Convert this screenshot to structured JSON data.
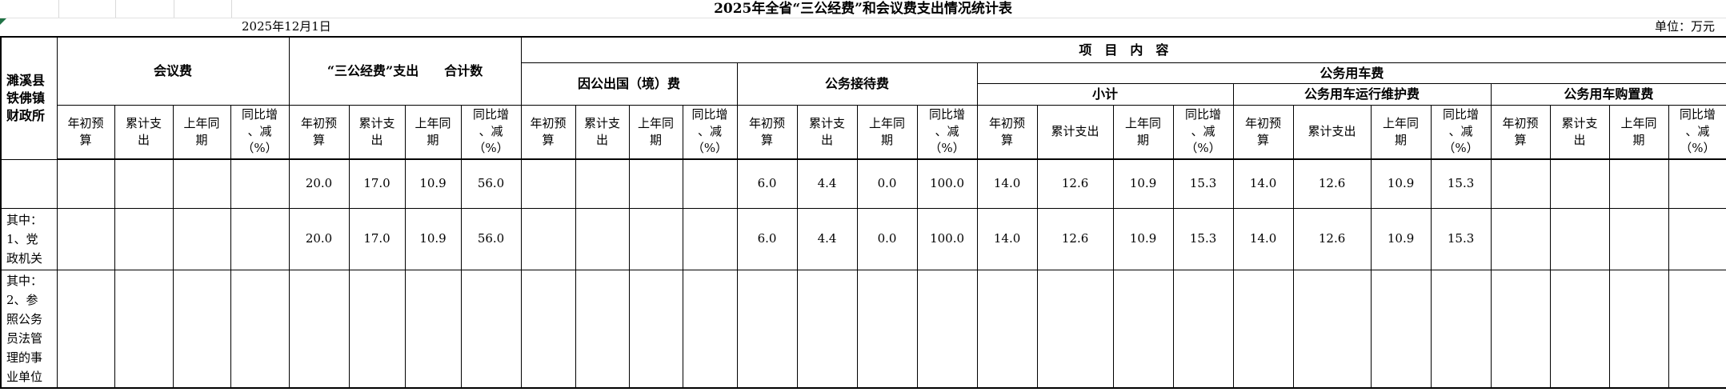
{
  "title": "2025年全省“三公经费”和会议费支出情况统计表",
  "date": "2025年12月1日",
  "unit_note": "单位：万元",
  "colors": {
    "error_triangle_green": "#217346",
    "grid_gray": "#d9d9d9",
    "border_black": "#000000"
  },
  "table": {
    "org": "濉溪县\n铁佛镇\n财政所",
    "groups": {
      "meeting": "会议费",
      "sangong_total": "“三公经费”支出　　合计数",
      "project_content": "项　目　内　容",
      "abroad": "因公出国（境）费",
      "reception": "公务接待费",
      "vehicle": "公务用车费",
      "vehicle_subtotal": "小计",
      "vehicle_maintenance": "公务用车运行维护费",
      "vehicle_purchase": "公务用车购置费"
    },
    "columns": [
      "年初预\n算",
      "累计支\n出",
      "上年同\n期",
      "同比增\n、减\n（%）",
      "年初预\n算",
      "累计支\n出",
      "上年同\n期",
      "同比增\n、减\n（%）",
      "年初预\n算",
      "累计支\n出",
      "上年同\n期",
      "同比增\n、减\n（%）",
      "年初预\n算",
      "累计支\n出",
      "上年同\n期",
      "同比增\n、减\n（%）",
      "年初预\n算",
      "累计支出",
      "上年同\n期",
      "同比增\n、减\n（%）",
      "年初预\n算",
      "累计支出",
      "上年同\n期",
      "同比增\n、减\n（%）",
      "年初预\n算",
      "累计支\n出",
      "上年同\n期",
      "同比增\n、减\n（%）"
    ],
    "rows": [
      {
        "label": "",
        "values": [
          "",
          "",
          "",
          "",
          "20.0",
          "17.0",
          "10.9",
          "56.0",
          "",
          "",
          "",
          "",
          "6.0",
          "4.4",
          "0.0",
          "100.0",
          "14.0",
          "12.6",
          "10.9",
          "15.3",
          "14.0",
          "12.6",
          "10.9",
          "15.3",
          "",
          "",
          "",
          ""
        ]
      },
      {
        "label": "其中：\n1、党\n政机关",
        "values": [
          "",
          "",
          "",
          "",
          "20.0",
          "17.0",
          "10.9",
          "56.0",
          "",
          "",
          "",
          "",
          "6.0",
          "4.4",
          "0.0",
          "100.0",
          "14.0",
          "12.6",
          "10.9",
          "15.3",
          "14.0",
          "12.6",
          "10.9",
          "15.3",
          "",
          "",
          "",
          ""
        ]
      },
      {
        "label": "其中：\n2、参\n照公务\n员法管\n理的事\n业单位",
        "values": [
          "",
          "",
          "",
          "",
          "",
          "",
          "",
          "",
          "",
          "",
          "",
          "",
          "",
          "",
          "",
          "",
          "",
          "",
          "",
          "",
          "",
          "",
          "",
          "",
          "",
          "",
          "",
          ""
        ]
      }
    ]
  }
}
